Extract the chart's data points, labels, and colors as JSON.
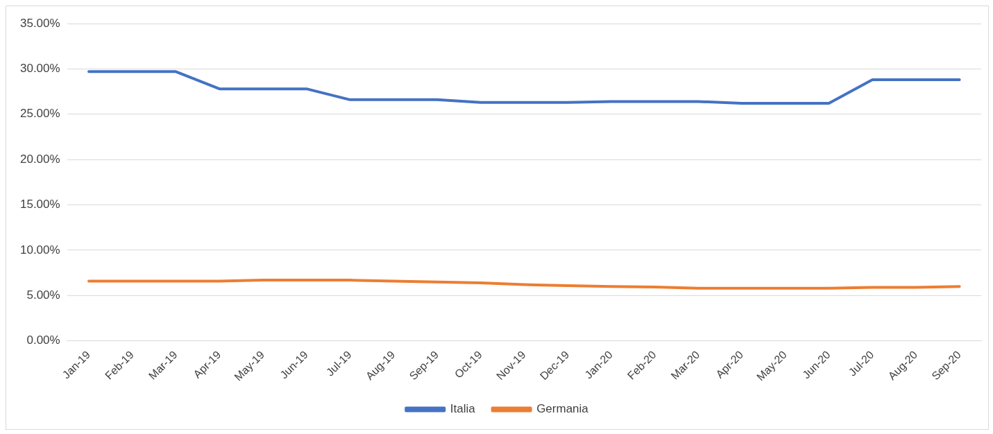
{
  "chart_data": {
    "type": "line",
    "categories": [
      "Jan-19",
      "Feb-19",
      "Mar-19",
      "Apr-19",
      "May-19",
      "Jun-19",
      "Jul-19",
      "Aug-19",
      "Sep-19",
      "Oct-19",
      "Nov-19",
      "Dec-19",
      "Jan-20",
      "Feb-20",
      "Mar-20",
      "Apr-20",
      "May-20",
      "Jun-20",
      "Jul-20",
      "Aug-20",
      "Sep-20"
    ],
    "series": [
      {
        "name": "Italia",
        "color": "#4472c4",
        "values": [
          29.7,
          29.7,
          29.7,
          27.8,
          27.8,
          27.8,
          26.6,
          26.6,
          26.6,
          26.3,
          26.3,
          26.3,
          26.4,
          26.4,
          26.4,
          26.2,
          26.2,
          26.2,
          28.8,
          28.8,
          28.8
        ]
      },
      {
        "name": "Germania",
        "color": "#ed7d31",
        "values": [
          6.6,
          6.6,
          6.6,
          6.6,
          6.7,
          6.7,
          6.7,
          6.6,
          6.5,
          6.4,
          6.2,
          6.1,
          6.0,
          5.95,
          5.8,
          5.8,
          5.8,
          5.8,
          5.9,
          5.9,
          6.0
        ]
      }
    ],
    "ylim": [
      0,
      35
    ],
    "yticks": [
      {
        "value": 0,
        "label": "0.00%"
      },
      {
        "value": 5,
        "label": "5.00%"
      },
      {
        "value": 10,
        "label": "10.00%"
      },
      {
        "value": 15,
        "label": "15.00%"
      },
      {
        "value": 20,
        "label": "20.00%"
      },
      {
        "value": 25,
        "label": "25.00%"
      },
      {
        "value": 30,
        "label": "30.00%"
      },
      {
        "value": 35,
        "label": "35.00%"
      }
    ],
    "grid": "y",
    "legend": "bottom",
    "marker": "none",
    "line_style": "solid"
  }
}
